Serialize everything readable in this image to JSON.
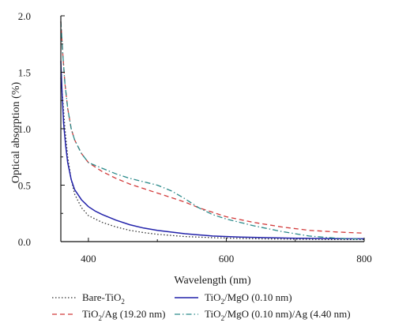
{
  "chart_data": {
    "type": "line",
    "xlabel": "Wavelength (nm)",
    "ylabel": "Optical absorption (%)",
    "xlim": [
      360,
      800
    ],
    "ylim": [
      0,
      2.0
    ],
    "xticks": [
      400,
      600,
      800
    ],
    "yticks": [
      0.0,
      0.5,
      1.0,
      1.5,
      2.0
    ],
    "xtick_labels": [
      "400",
      "600",
      "800"
    ],
    "ytick_labels": [
      "0.0",
      "0.5",
      "1.0",
      "1.5",
      "2.0"
    ],
    "grid": false,
    "legend_position": "bottom",
    "series": [
      {
        "name": "Bare-TiO2",
        "label": {
          "base": "Bare-TiO",
          "sub": "2",
          "tail": ""
        },
        "color": "#333333",
        "style": "dotted",
        "x": [
          360,
          363,
          366,
          370,
          375,
          380,
          390,
          400,
          420,
          440,
          460,
          480,
          500,
          540,
          580,
          620,
          660,
          700,
          740,
          780,
          800
        ],
        "y": [
          1.45,
          1.25,
          1.0,
          0.75,
          0.55,
          0.42,
          0.3,
          0.23,
          0.17,
          0.13,
          0.1,
          0.08,
          0.065,
          0.045,
          0.035,
          0.028,
          0.024,
          0.021,
          0.019,
          0.018,
          0.018
        ]
      },
      {
        "name": "TiO2/MgO (0.10 nm)",
        "label": {
          "base": "TiO",
          "sub": "2",
          "tail": "/MgO (0.10 nm)"
        },
        "color": "#2222aa",
        "style": "solid",
        "x": [
          360,
          362,
          364,
          367,
          370,
          375,
          380,
          390,
          400,
          410,
          420,
          440,
          460,
          480,
          500,
          540,
          580,
          620,
          660,
          700,
          740,
          780,
          800
        ],
        "y": [
          1.6,
          1.3,
          1.05,
          0.85,
          0.7,
          0.55,
          0.46,
          0.37,
          0.31,
          0.27,
          0.24,
          0.19,
          0.15,
          0.12,
          0.1,
          0.07,
          0.05,
          0.04,
          0.035,
          0.03,
          0.027,
          0.025,
          0.025
        ]
      },
      {
        "name": "TiO2/Ag (19.20 nm)",
        "label": {
          "base": "TiO",
          "sub": "2",
          "tail": "/Ag (19.20 nm)"
        },
        "color": "#d23a3a",
        "style": "dashed",
        "x": [
          360,
          363,
          366,
          370,
          375,
          380,
          390,
          400,
          420,
          440,
          460,
          480,
          500,
          520,
          540,
          560,
          580,
          600,
          640,
          680,
          720,
          760,
          800
        ],
        "y": [
          1.95,
          1.65,
          1.4,
          1.18,
          1.0,
          0.9,
          0.78,
          0.7,
          0.62,
          0.56,
          0.51,
          0.47,
          0.43,
          0.39,
          0.35,
          0.3,
          0.26,
          0.22,
          0.17,
          0.13,
          0.1,
          0.085,
          0.075
        ]
      },
      {
        "name": "TiO2/MgO (0.10 nm)/Ag (4.40 nm)",
        "label": {
          "base": "TiO",
          "sub": "2",
          "tail": "/MgO (0.10 nm)/Ag (4.40 nm)"
        },
        "color": "#2a8a8a",
        "style": "dashdot",
        "x": [
          360,
          363,
          366,
          370,
          375,
          380,
          390,
          400,
          420,
          440,
          460,
          480,
          500,
          520,
          540,
          560,
          580,
          600,
          640,
          680,
          720,
          760,
          800
        ],
        "y": [
          1.95,
          1.65,
          1.4,
          1.18,
          1.0,
          0.9,
          0.78,
          0.7,
          0.65,
          0.6,
          0.56,
          0.53,
          0.5,
          0.45,
          0.38,
          0.3,
          0.24,
          0.2,
          0.14,
          0.09,
          0.05,
          0.03,
          0.02
        ]
      }
    ]
  }
}
